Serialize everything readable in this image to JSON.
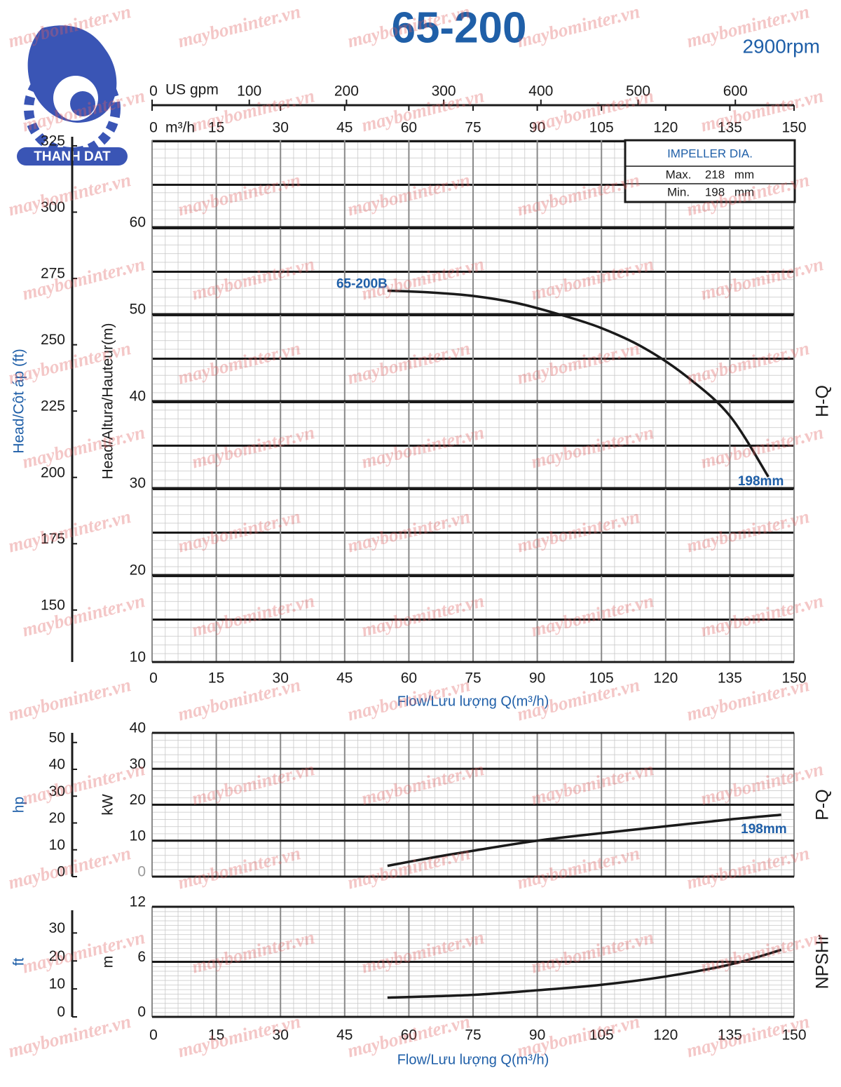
{
  "page": {
    "title": "65-200",
    "speed": "2900rpm",
    "logo_text": "THANH DAT",
    "watermark": "maybominter.vn"
  },
  "chart_data": [
    {
      "type": "line",
      "x": [
        55,
        65,
        75,
        85,
        95,
        105,
        115,
        125,
        135,
        144
      ],
      "series": [
        {
          "name": "198mm",
          "color": "#1a1a1a",
          "values": [
            52.7,
            52.5,
            52.1,
            51.3,
            50.0,
            48.4,
            46.1,
            42.8,
            38.3,
            31.3
          ]
        }
      ],
      "xlim": [
        0,
        150
      ],
      "xticks": [
        0,
        15,
        30,
        45,
        60,
        75,
        90,
        105,
        120,
        135,
        150
      ],
      "x_unit": "m³/h",
      "x2label": "US gpm",
      "x2lim": [
        0,
        660.4
      ],
      "x2ticks": [
        0,
        100,
        200,
        300,
        400,
        500,
        600
      ],
      "xlabel": "Flow/Lưu lượng Q(m³/h)",
      "ylim": [
        10,
        70
      ],
      "yticks": [
        10,
        20,
        30,
        40,
        50,
        60
      ],
      "ylabel": "Head/Altura/Hauteur(m)",
      "y2lim": [
        130.4,
        327.1
      ],
      "y2ticks": [
        150,
        175,
        200,
        225,
        250,
        275,
        300,
        325
      ],
      "y2label": "Head/Cột áp (ft)",
      "side_label": "H-Q",
      "annotation": "65-200B",
      "table": {
        "title": "IMPELLER DIA.",
        "rows": [
          [
            "Max.",
            218,
            "mm"
          ],
          [
            "Min.",
            198,
            "mm"
          ]
        ]
      }
    },
    {
      "type": "line",
      "x": [
        55,
        65,
        75,
        90,
        105,
        120,
        135,
        147
      ],
      "series": [
        {
          "name": "198mm",
          "color": "#1a1a1a",
          "values": [
            3.0,
            5.2,
            7.2,
            10.0,
            12.1,
            14.0,
            15.9,
            17.2
          ]
        }
      ],
      "xlim": [
        0,
        150
      ],
      "ylim": [
        0,
        40
      ],
      "yticks": [
        0,
        10,
        20,
        30,
        40
      ],
      "ylabel": "kW",
      "y2lim": [
        0,
        53.6
      ],
      "y2ticks": [
        0,
        10,
        20,
        30,
        40,
        50
      ],
      "y2label": "hp",
      "side_label": "P-Q"
    },
    {
      "type": "line",
      "x": [
        55,
        75,
        90,
        105,
        120,
        135,
        147
      ],
      "series": [
        {
          "color": "#1a1a1a",
          "values": [
            2.1,
            2.4,
            2.9,
            3.5,
            4.4,
            5.7,
            7.3
          ]
        }
      ],
      "xlim": [
        0,
        150
      ],
      "xticks": [
        0,
        15,
        30,
        45,
        60,
        75,
        90,
        105,
        120,
        135,
        150
      ],
      "xlabel": "Flow/Lưu lượng Q(m³/h)",
      "ylim": [
        0,
        12
      ],
      "yticks": [
        0,
        6,
        12
      ],
      "ylabel": "m",
      "y2lim": [
        0,
        39.37
      ],
      "y2ticks": [
        0,
        10,
        20,
        30
      ],
      "y2label": "ft",
      "side_label": "NPSHr"
    }
  ]
}
